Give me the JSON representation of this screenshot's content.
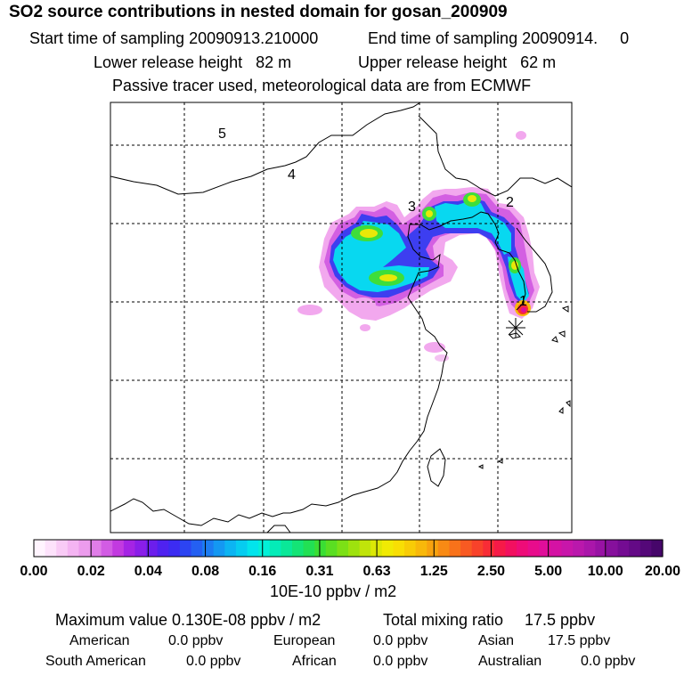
{
  "header": {
    "title": "SO2 source contributions in nested domain for gosan_200909",
    "start_sampling": "Start time of sampling 20090913.210000",
    "end_sampling": "End time of sampling 20090914.     0",
    "lower_release": "Lower release height   82 m",
    "upper_release": "Upper release height   62 m",
    "note": "Passive tracer used, meteorological data are from ECMWF"
  },
  "chart_data": {
    "type": "heatmap",
    "title": "SO2 source contributions in nested domain for gosan_200909",
    "map_labels": [
      "1",
      "2",
      "3",
      "4",
      "5"
    ],
    "station_marker": "gosan",
    "colorbar": {
      "tick_labels": [
        "0.00",
        "0.02",
        "0.04",
        "0.08",
        "0.16",
        "0.31",
        "0.63",
        "1.25",
        "2.50",
        "5.00",
        "10.00",
        "20.00"
      ],
      "unit_label": "10E-10 ppbv / m2",
      "colors": [
        "#fff4fe",
        "#fde2fb",
        "#f9cbf6",
        "#f4b4f2",
        "#ec9ced",
        "#e07de8",
        "#d25ce4",
        "#c23ae0",
        "#a524e4",
        "#8a1ee8",
        "#6c1eec",
        "#4f22f0",
        "#3c2cf2",
        "#2c44f2",
        "#2460f2",
        "#1c7cf2",
        "#1498f2",
        "#0cb4f2",
        "#06ccf0",
        "#02e4ec",
        "#02f0d8",
        "#04ecb8",
        "#0ae898",
        "#14e476",
        "#22e054",
        "#3ade34",
        "#5ade22",
        "#7ce016",
        "#9ee20e",
        "#c0e40a",
        "#dce806",
        "#f0ea04",
        "#f8de04",
        "#f8cc06",
        "#f8b80a",
        "#f8a20e",
        "#f88a14",
        "#f8721a",
        "#f85a22",
        "#f8422a",
        "#f82c36",
        "#f61a48",
        "#f21060",
        "#ee0c78",
        "#e80c8c",
        "#e00e9a",
        "#d412a4",
        "#c816aa",
        "#ba18ac",
        "#aa16aa",
        "#9812a4",
        "#86109c",
        "#740c92",
        "#640a86",
        "#540878",
        "#46066a"
      ]
    },
    "values_unit": "ppbv",
    "max_value": "0.130E-08",
    "total_mixing_ratio": 17.5,
    "regions": [
      {
        "name": "American",
        "value": 0.0
      },
      {
        "name": "European",
        "value": 0.0
      },
      {
        "name": "Asian",
        "value": 17.5
      },
      {
        "name": "South American",
        "value": 0.0
      },
      {
        "name": "African",
        "value": 0.0
      },
      {
        "name": "Australian",
        "value": 0.0
      }
    ]
  },
  "footer": {
    "max_text": "Maximum value  0.130E-08 ppbv / m2",
    "total_text": "Total mixing ratio",
    "total_value": "17.5 ppbv",
    "regions_text": [
      {
        "label": "American",
        "value": "0.0 ppbv"
      },
      {
        "label": "European",
        "value": "0.0 ppbv"
      },
      {
        "label": "Asian",
        "value": "17.5 ppbv"
      },
      {
        "label": "South American",
        "value": "0.0 ppbv"
      },
      {
        "label": "African",
        "value": "0.0 ppbv"
      },
      {
        "label": "Australian",
        "value": "0.0 ppbv"
      }
    ]
  }
}
